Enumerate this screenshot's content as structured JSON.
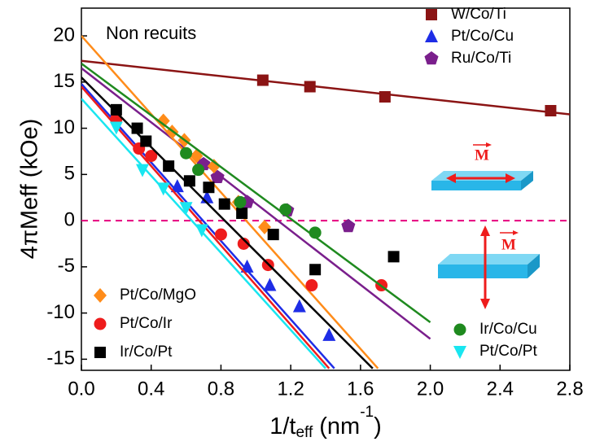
{
  "chart_data": {
    "type": "scatter",
    "annotation": "Non recuits",
    "m_label": "M",
    "ylabel": "4πMeff (kOe)",
    "xlabel": [
      "1/t",
      "eff",
      " (nm",
      "-1",
      ")"
    ],
    "xlim": [
      0,
      2.8
    ],
    "ylim": [
      -16.2,
      23
    ],
    "xticks": [
      {
        "value": 0,
        "label": "0.0"
      },
      0.4,
      0.8,
      1.2,
      1.6,
      {
        "value": 2,
        "label": "2.0"
      },
      2.4,
      2.8
    ],
    "yticks": [
      -15,
      -10,
      -5,
      0,
      5,
      10,
      15,
      20
    ],
    "reference_line": {
      "y": 0,
      "color": "#e6007e"
    },
    "series": [
      {
        "name": "W/Co/Ti",
        "color": "#8b1414",
        "marker": "square",
        "legend": "top-right",
        "x": [
          1.04,
          1.31,
          1.74,
          2.69
        ],
        "values": [
          15.2,
          14.5,
          13.4,
          11.9
        ],
        "fit_x": [
          0,
          2.8
        ],
        "fit_y": [
          17.3,
          11.5
        ]
      },
      {
        "name": "Pt/Co/Cu",
        "color": "#1e2de6",
        "marker": "triangle",
        "legend": "top-right",
        "x": [
          0.55,
          0.72,
          0.95,
          1.08,
          1.25,
          1.42
        ],
        "values": [
          3.7,
          2.5,
          -5,
          -7,
          -9.3,
          -12.4
        ],
        "fit_x": [
          0,
          1.45
        ],
        "fit_y": [
          14.8,
          -16
        ]
      },
      {
        "name": "Ru/Co/Ti",
        "color": "#7a1f8c",
        "marker": "pentagon",
        "legend": "top-right",
        "x": [
          0.7,
          0.78,
          0.95,
          1.18,
          1.53
        ],
        "values": [
          6.1,
          4.7,
          2,
          1.1,
          -0.6
        ],
        "fit_x": [
          0,
          2.0
        ],
        "fit_y": [
          16.5,
          -12.8
        ]
      },
      {
        "name": "Pt/Co/MgO",
        "color": "#ff8c1a",
        "marker": "diamond",
        "legend": "bottom-left",
        "x": [
          0.47,
          0.52,
          0.59,
          0.66,
          0.76,
          0.9,
          1.05
        ],
        "values": [
          10.8,
          9.6,
          8.7,
          7,
          5.9,
          2,
          -0.7
        ],
        "fit_x": [
          0,
          1.7
        ],
        "fit_y": [
          20,
          -16
        ]
      },
      {
        "name": "Pt/Co/Ir",
        "color": "#ee1c1c",
        "marker": "circle",
        "legend": "bottom-left",
        "x": [
          0.2,
          0.33,
          0.4,
          0.8,
          0.93,
          1.07,
          1.32,
          1.72
        ],
        "values": [
          11,
          7.8,
          7,
          -1.5,
          -2.5,
          -4.8,
          -7,
          -7
        ],
        "fit_x": [
          0,
          1.42
        ],
        "fit_y": [
          14.5,
          -16
        ]
      },
      {
        "name": "Ir/Co/Pt",
        "color": "#000000",
        "marker": "square",
        "legend": "bottom-left",
        "x": [
          0.2,
          0.32,
          0.37,
          0.5,
          0.62,
          0.73,
          0.82,
          0.92,
          1.1,
          1.34,
          1.79
        ],
        "values": [
          12,
          10,
          8.6,
          5.9,
          4.3,
          3.6,
          1.8,
          0.8,
          -1.5,
          -5.3,
          -3.9
        ],
        "fit_x": [
          0,
          1.67
        ],
        "fit_y": [
          15.5,
          -16
        ]
      },
      {
        "name": "Ir/Co/Cu",
        "color": "#1f8a1f",
        "marker": "circle",
        "legend": "bottom-right",
        "x": [
          0.6,
          0.67,
          0.91,
          1.17,
          1.34
        ],
        "values": [
          7.3,
          5.5,
          2.0,
          1.2,
          -1.3
        ],
        "fit_x": [
          0,
          2.0
        ],
        "fit_y": [
          17,
          -11
        ]
      },
      {
        "name": "Pt/Co/Pt",
        "color": "#19e6f0",
        "marker": "down-triangle",
        "legend": "bottom-right",
        "x": [
          0.2,
          0.35,
          0.47,
          0.6,
          0.69
        ],
        "values": [
          10.1,
          5.5,
          3.5,
          1.4,
          -1
        ],
        "fit_x": [
          0,
          1.4
        ],
        "fit_y": [
          13.2,
          -16
        ]
      }
    ]
  }
}
